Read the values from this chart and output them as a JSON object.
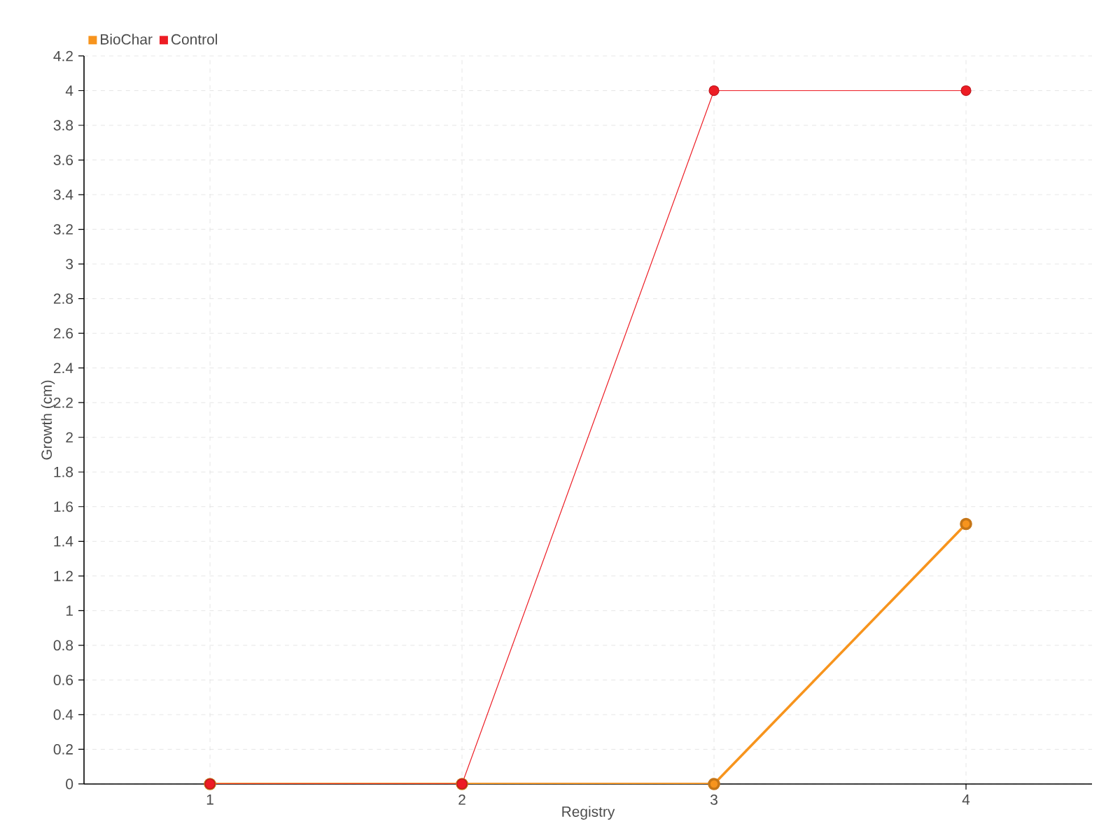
{
  "chart_data": {
    "type": "line",
    "xlabel": "Registry",
    "ylabel": "Growth (cm)",
    "x": [
      1,
      2,
      3,
      4
    ],
    "series": [
      {
        "name": "BioChar",
        "color": "#f7941d",
        "values": [
          0,
          0,
          0,
          1.5
        ]
      },
      {
        "name": "Control",
        "color": "#ed1c24",
        "values": [
          0,
          0,
          4,
          4
        ]
      }
    ],
    "xlim": [
      0.5,
      4.5
    ],
    "xticks": [
      1,
      2,
      3,
      4
    ],
    "ylim": [
      0,
      4.2
    ],
    "yticks": [
      0,
      0.2,
      0.4,
      0.6,
      0.8,
      1,
      1.2,
      1.4,
      1.6,
      1.8,
      2,
      2.2,
      2.4,
      2.6,
      2.8,
      3,
      3.2,
      3.4,
      3.6,
      3.8,
      4,
      4.2
    ],
    "grid": true,
    "legend": "top left",
    "marker": "circle",
    "line_style": "solid"
  }
}
